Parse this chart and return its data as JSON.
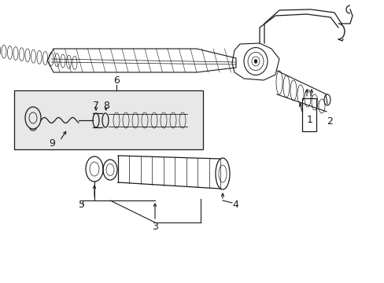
{
  "bg_color": "#ffffff",
  "line_color": "#1a1a1a",
  "fig_width": 4.89,
  "fig_height": 3.6,
  "dpi": 100,
  "lw": 0.8,
  "label_fs": 9
}
